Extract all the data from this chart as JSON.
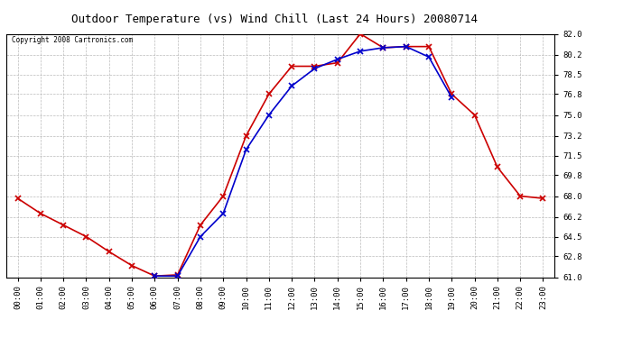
{
  "title": "Outdoor Temperature (vs) Wind Chill (Last 24 Hours) 20080714",
  "copyright": "Copyright 2008 Cartronics.com",
  "x_labels": [
    "00:00",
    "01:00",
    "02:00",
    "03:00",
    "04:00",
    "05:00",
    "06:00",
    "07:00",
    "08:00",
    "09:00",
    "10:00",
    "11:00",
    "12:00",
    "13:00",
    "14:00",
    "15:00",
    "16:00",
    "17:00",
    "18:00",
    "19:00",
    "20:00",
    "21:00",
    "22:00",
    "23:00"
  ],
  "temp_red": [
    67.8,
    66.5,
    65.5,
    64.5,
    63.2,
    62.0,
    61.1,
    61.2,
    65.5,
    68.0,
    73.2,
    76.8,
    79.2,
    79.2,
    79.5,
    82.0,
    80.8,
    80.9,
    80.9,
    76.8,
    75.0,
    70.5,
    68.0,
    67.8
  ],
  "wind_blue": [
    null,
    null,
    null,
    null,
    null,
    null,
    61.1,
    61.1,
    64.5,
    66.5,
    72.0,
    75.0,
    77.5,
    79.0,
    79.8,
    80.5,
    80.8,
    80.9,
    80.0,
    76.5,
    null,
    null,
    null,
    null
  ],
  "ylim_min": 61.0,
  "ylim_max": 82.0,
  "y_ticks": [
    61.0,
    62.8,
    64.5,
    66.2,
    68.0,
    69.8,
    71.5,
    73.2,
    75.0,
    76.8,
    78.5,
    80.2,
    82.0
  ],
  "red_color": "#cc0000",
  "blue_color": "#0000cc",
  "grid_color": "#bbbbbb",
  "bg_color": "#ffffff",
  "plot_bg_color": "#ffffff",
  "title_fontsize": 9,
  "tick_fontsize": 6.5,
  "copyright_fontsize": 5.5
}
